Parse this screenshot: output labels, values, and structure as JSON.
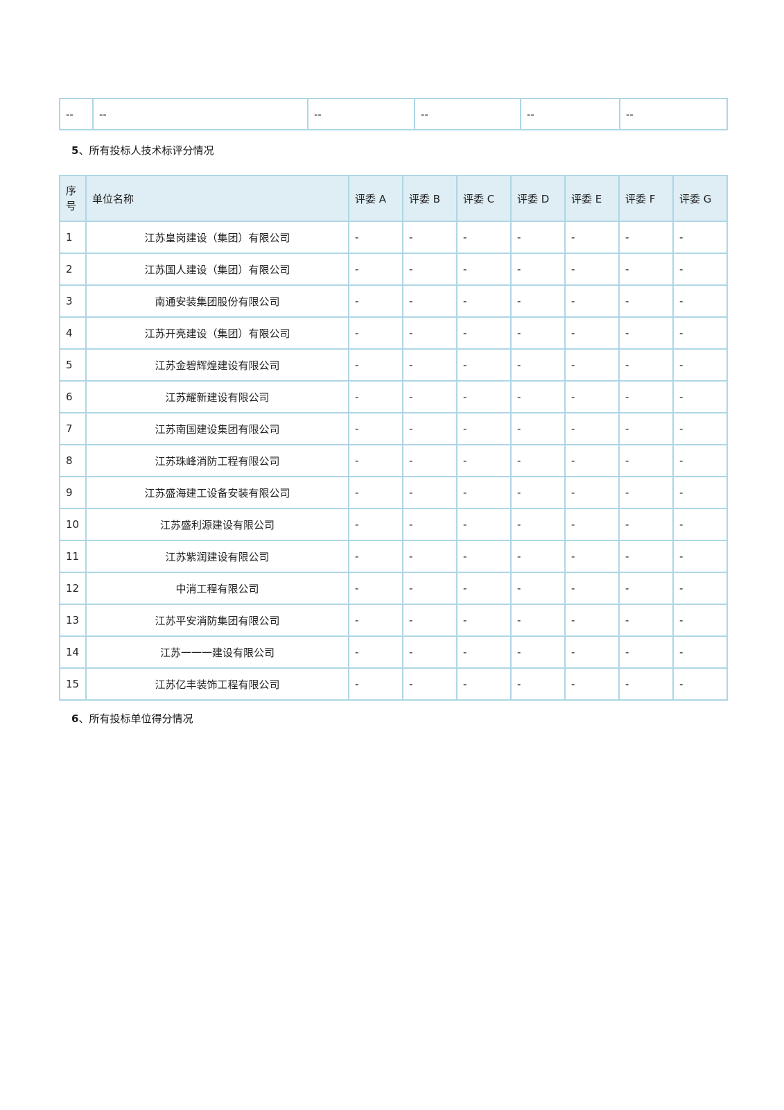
{
  "colors": {
    "page_bg": "#ffffff",
    "table_border": "#aed6e6",
    "header_bg": "#dfeef5",
    "text": "#222222"
  },
  "fragment_row": {
    "cells": [
      "--",
      "--",
      "--",
      "--",
      "--",
      "--"
    ]
  },
  "sections": {
    "tech_score": {
      "number": "5",
      "delimiter": "、",
      "title": "所有投标人技术标评分情况"
    },
    "total_score": {
      "number": "6",
      "delimiter": "、",
      "title": "所有投标单位得分情况"
    }
  },
  "score_table": {
    "header": {
      "index_label_line1": "序",
      "index_label_line2": "号",
      "company_label": "单位名称",
      "judge_labels": [
        "评委 A",
        "评委 B",
        "评委 C",
        "评委 D",
        "评委 E",
        "评委 F",
        "评委 G"
      ]
    },
    "rows": [
      {
        "index": "1",
        "company": "江苏皇岗建设（集团）有限公司",
        "scores": [
          "-",
          "-",
          "-",
          "-",
          "-",
          "-",
          "-"
        ]
      },
      {
        "index": "2",
        "company": "江苏国人建设（集团）有限公司",
        "scores": [
          "-",
          "-",
          "-",
          "-",
          "-",
          "-",
          "-"
        ]
      },
      {
        "index": "3",
        "company": "南通安装集团股份有限公司",
        "scores": [
          "-",
          "-",
          "-",
          "-",
          "-",
          "-",
          "-"
        ]
      },
      {
        "index": "4",
        "company": "江苏开亮建设（集团）有限公司",
        "scores": [
          "-",
          "-",
          "-",
          "-",
          "-",
          "-",
          "-"
        ]
      },
      {
        "index": "5",
        "company": "江苏金碧辉煌建设有限公司",
        "scores": [
          "-",
          "-",
          "-",
          "-",
          "-",
          "-",
          "-"
        ]
      },
      {
        "index": "6",
        "company": "江苏耀新建设有限公司",
        "scores": [
          "-",
          "-",
          "-",
          "-",
          "-",
          "-",
          "-"
        ]
      },
      {
        "index": "7",
        "company": "江苏南国建设集团有限公司",
        "scores": [
          "-",
          "-",
          "-",
          "-",
          "-",
          "-",
          "-"
        ]
      },
      {
        "index": "8",
        "company": "江苏珠峰消防工程有限公司",
        "scores": [
          "-",
          "-",
          "-",
          "-",
          "-",
          "-",
          "-"
        ]
      },
      {
        "index": "9",
        "company": "江苏盛海建工设备安装有限公司",
        "scores": [
          "-",
          "-",
          "-",
          "-",
          "-",
          "-",
          "-"
        ]
      },
      {
        "index": "10",
        "company": "江苏盛利源建设有限公司",
        "scores": [
          "-",
          "-",
          "-",
          "-",
          "-",
          "-",
          "-"
        ]
      },
      {
        "index": "11",
        "company": "江苏紫润建设有限公司",
        "scores": [
          "-",
          "-",
          "-",
          "-",
          "-",
          "-",
          "-"
        ]
      },
      {
        "index": "12",
        "company": "中消工程有限公司",
        "scores": [
          "-",
          "-",
          "-",
          "-",
          "-",
          "-",
          "-"
        ]
      },
      {
        "index": "13",
        "company": "江苏平安消防集团有限公司",
        "scores": [
          "-",
          "-",
          "-",
          "-",
          "-",
          "-",
          "-"
        ]
      },
      {
        "index": "14",
        "company": "江苏一一一建设有限公司",
        "scores": [
          "-",
          "-",
          "-",
          "-",
          "-",
          "-",
          "-"
        ]
      },
      {
        "index": "15",
        "company": "江苏亿丰装饰工程有限公司",
        "scores": [
          "-",
          "-",
          "-",
          "-",
          "-",
          "-",
          "-"
        ]
      }
    ]
  }
}
